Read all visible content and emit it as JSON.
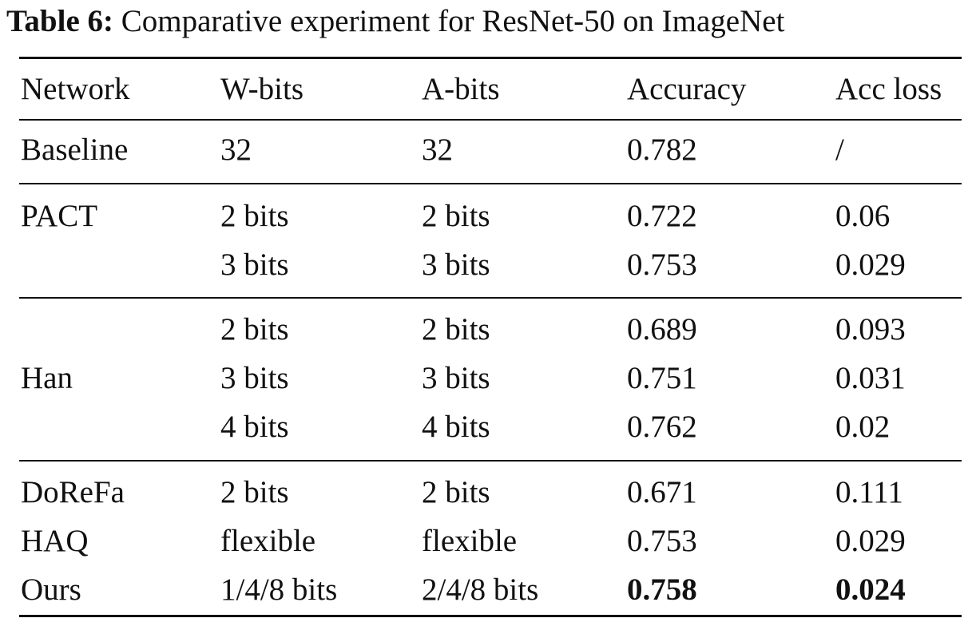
{
  "caption": {
    "label": "Table 6:",
    "text": "Comparative experiment for ResNet-50 on ImageNet"
  },
  "table": {
    "headers": [
      "Network",
      "W-bits",
      "A-bits",
      "Accuracy",
      "Acc loss"
    ],
    "groups": [
      {
        "network": "Baseline",
        "rows": [
          {
            "w_bits": "32",
            "a_bits": "32",
            "accuracy": "0.782",
            "acc_loss": "/"
          }
        ]
      },
      {
        "network": "PACT",
        "rows": [
          {
            "w_bits": "2 bits",
            "a_bits": "2 bits",
            "accuracy": "0.722",
            "acc_loss": "0.06"
          },
          {
            "w_bits": "3 bits",
            "a_bits": "3 bits",
            "accuracy": "0.753",
            "acc_loss": "0.029"
          }
        ]
      },
      {
        "network": "Han",
        "rows": [
          {
            "w_bits": "2 bits",
            "a_bits": "2 bits",
            "accuracy": "0.689",
            "acc_loss": "0.093"
          },
          {
            "w_bits": "3 bits",
            "a_bits": "3 bits",
            "accuracy": "0.751",
            "acc_loss": "0.031"
          },
          {
            "w_bits": "4 bits",
            "a_bits": "4 bits",
            "accuracy": "0.762",
            "acc_loss": "0.02"
          }
        ]
      },
      {
        "networks": [
          "DoReFa",
          "HAQ",
          "Ours"
        ],
        "rows": [
          {
            "network": "DoReFa",
            "w_bits": "2 bits",
            "a_bits": "2 bits",
            "accuracy": "0.671",
            "acc_loss": "0.111"
          },
          {
            "network": "HAQ",
            "w_bits": "flexible",
            "a_bits": "flexible",
            "accuracy": "0.753",
            "acc_loss": "0.029"
          },
          {
            "network": "Ours",
            "w_bits": "1/4/8 bits",
            "a_bits": "2/4/8 bits",
            "accuracy": "0.758",
            "acc_loss": "0.024",
            "bold": [
              "accuracy",
              "acc_loss"
            ]
          }
        ]
      }
    ]
  }
}
